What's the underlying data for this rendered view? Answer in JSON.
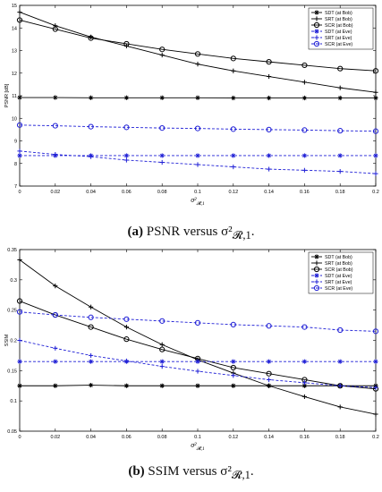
{
  "captions": {
    "a": {
      "tag": "(a)",
      "text": "PSNR versus σ²",
      "sub": "𝓡,1",
      "end": "."
    },
    "b": {
      "tag": "(b)",
      "text": "SSIM versus σ²",
      "sub": "𝓡,1",
      "end": "."
    }
  },
  "chart_data": [
    {
      "type": "line",
      "ylabel": "PSNR [dB]",
      "xlabel_main": "σ²",
      "xlabel_sub": "𝓡,1",
      "xlim": [
        0,
        0.2
      ],
      "ylim": [
        7,
        15
      ],
      "xticks": [
        "0",
        "0.02",
        "0.04",
        "0.06",
        "0.08",
        "0.1",
        "0.12",
        "0.14",
        "0.16",
        "0.18",
        "0.2"
      ],
      "yticks": [
        "7",
        "8",
        "9",
        "10",
        "11",
        "12",
        "13",
        "14",
        "15"
      ],
      "grid": false,
      "legend_position": "top-right",
      "x": [
        0,
        0.02,
        0.04,
        0.06,
        0.08,
        0.1,
        0.12,
        0.14,
        0.16,
        0.18,
        0.2
      ],
      "series": [
        {
          "name": "SDT (at Bob)",
          "color": "#000000",
          "dash": false,
          "marker": "star",
          "values": [
            10.92,
            10.92,
            10.91,
            10.91,
            10.91,
            10.91,
            10.9,
            10.9,
            10.9,
            10.9,
            10.9
          ]
        },
        {
          "name": "SRT (at Bob)",
          "color": "#000000",
          "dash": false,
          "marker": "plus",
          "values": [
            14.7,
            14.1,
            13.6,
            13.2,
            12.8,
            12.4,
            12.1,
            11.85,
            11.6,
            11.35,
            11.15
          ]
        },
        {
          "name": "SCR (at Bob)",
          "color": "#000000",
          "dash": false,
          "marker": "circle",
          "values": [
            14.35,
            13.95,
            13.55,
            13.3,
            13.05,
            12.85,
            12.65,
            12.5,
            12.35,
            12.2,
            12.1
          ]
        },
        {
          "name": "SDT (at Eve)",
          "color": "#1f1fd6",
          "dash": true,
          "marker": "star",
          "values": [
            8.35,
            8.35,
            8.35,
            8.35,
            8.35,
            8.35,
            8.35,
            8.35,
            8.35,
            8.35,
            8.35
          ]
        },
        {
          "name": "SRT (at Eve)",
          "color": "#1f1fd6",
          "dash": true,
          "marker": "plus",
          "values": [
            8.55,
            8.4,
            8.3,
            8.15,
            8.05,
            7.95,
            7.85,
            7.75,
            7.7,
            7.65,
            7.55
          ]
        },
        {
          "name": "SCR (at Eve)",
          "color": "#1f1fd6",
          "dash": true,
          "marker": "circle",
          "values": [
            9.7,
            9.67,
            9.63,
            9.6,
            9.57,
            9.55,
            9.52,
            9.5,
            9.48,
            9.45,
            9.43
          ]
        }
      ]
    },
    {
      "type": "line",
      "ylabel": "SSIM",
      "xlabel_main": "σ²",
      "xlabel_sub": "𝓡,1",
      "xlim": [
        0,
        0.2
      ],
      "ylim": [
        0.05,
        0.35
      ],
      "xticks": [
        "0",
        "0.02",
        "0.04",
        "0.06",
        "0.08",
        "0.1",
        "0.12",
        "0.14",
        "0.16",
        "0.18",
        "0.2"
      ],
      "yticks": [
        "0.05",
        "0.1",
        "0.15",
        "0.2",
        "0.25",
        "0.3",
        "0.35"
      ],
      "grid": false,
      "legend_position": "top-right",
      "x": [
        0,
        0.02,
        0.04,
        0.06,
        0.08,
        0.1,
        0.12,
        0.14,
        0.16,
        0.18,
        0.2
      ],
      "series": [
        {
          "name": "SDT (at Bob)",
          "color": "#000000",
          "dash": false,
          "marker": "star",
          "values": [
            0.125,
            0.125,
            0.126,
            0.125,
            0.125,
            0.125,
            0.125,
            0.125,
            0.125,
            0.125,
            0.125
          ]
        },
        {
          "name": "SRT (at Bob)",
          "color": "#000000",
          "dash": false,
          "marker": "plus",
          "values": [
            0.333,
            0.29,
            0.255,
            0.222,
            0.193,
            0.168,
            0.146,
            0.125,
            0.107,
            0.09,
            0.078
          ]
        },
        {
          "name": "SCR (at Bob)",
          "color": "#000000",
          "dash": false,
          "marker": "circle",
          "values": [
            0.265,
            0.242,
            0.222,
            0.202,
            0.185,
            0.17,
            0.155,
            0.145,
            0.135,
            0.125,
            0.12
          ]
        },
        {
          "name": "SDT (at Eve)",
          "color": "#1f1fd6",
          "dash": true,
          "marker": "star",
          "values": [
            0.165,
            0.165,
            0.165,
            0.165,
            0.165,
            0.165,
            0.165,
            0.165,
            0.165,
            0.165,
            0.165
          ]
        },
        {
          "name": "SRT (at Eve)",
          "color": "#1f1fd6",
          "dash": true,
          "marker": "plus",
          "values": [
            0.2,
            0.187,
            0.175,
            0.166,
            0.157,
            0.149,
            0.142,
            0.135,
            0.13,
            0.125,
            0.122
          ]
        },
        {
          "name": "SCR (at Eve)",
          "color": "#1f1fd6",
          "dash": true,
          "marker": "circle",
          "values": [
            0.247,
            0.242,
            0.238,
            0.235,
            0.232,
            0.229,
            0.226,
            0.224,
            0.222,
            0.217,
            0.215
          ]
        }
      ]
    }
  ]
}
